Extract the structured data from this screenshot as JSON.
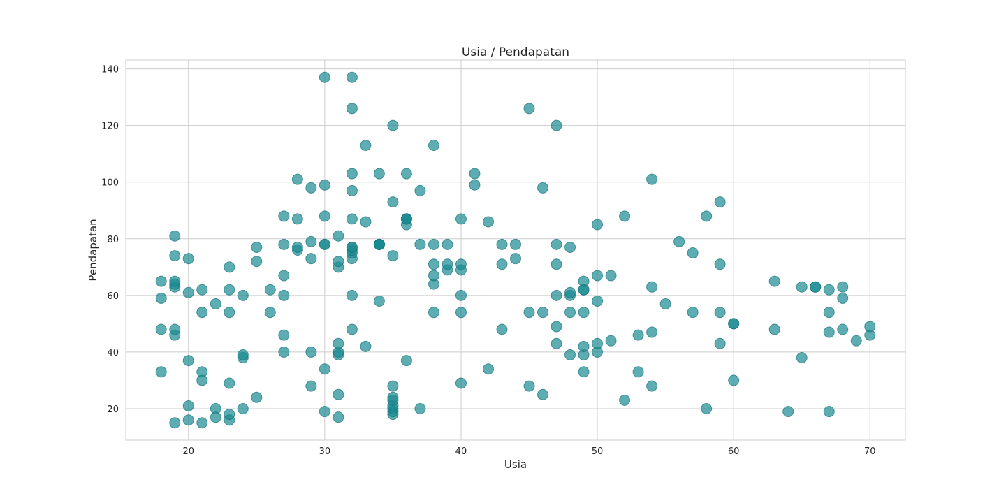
{
  "chart_data": {
    "type": "scatter",
    "title": "Usia / Pendapatan",
    "xlabel": "Usia",
    "ylabel": "Pendapatan",
    "xlim": [
      15.4,
      72.6
    ],
    "ylim": [
      8.9,
      143.1
    ],
    "xticks": [
      20,
      30,
      40,
      50,
      60,
      70
    ],
    "yticks": [
      20,
      40,
      60,
      80,
      100,
      120,
      140
    ],
    "grid": true,
    "marker_color": "#1a8a92",
    "marker_edge": "#16737a",
    "marker_alpha": 0.7,
    "points": [
      [
        19,
        15
      ],
      [
        21,
        15
      ],
      [
        20,
        16
      ],
      [
        23,
        16
      ],
      [
        31,
        17
      ],
      [
        22,
        17
      ],
      [
        35,
        18
      ],
      [
        23,
        18
      ],
      [
        64,
        19
      ],
      [
        67,
        19
      ],
      [
        30,
        19
      ],
      [
        35,
        19
      ],
      [
        58,
        20
      ],
      [
        35,
        20
      ],
      [
        37,
        20
      ],
      [
        22,
        20
      ],
      [
        24,
        20
      ],
      [
        20,
        21
      ],
      [
        35,
        21
      ],
      [
        52,
        23
      ],
      [
        35,
        23
      ],
      [
        25,
        24
      ],
      [
        35,
        24
      ],
      [
        46,
        25
      ],
      [
        31,
        25
      ],
      [
        54,
        28
      ],
      [
        45,
        28
      ],
      [
        29,
        28
      ],
      [
        35,
        28
      ],
      [
        40,
        29
      ],
      [
        23,
        29
      ],
      [
        60,
        30
      ],
      [
        21,
        30
      ],
      [
        53,
        33
      ],
      [
        18,
        33
      ],
      [
        49,
        33
      ],
      [
        21,
        33
      ],
      [
        30,
        34
      ],
      [
        42,
        34
      ],
      [
        20,
        37
      ],
      [
        36,
        37
      ],
      [
        65,
        38
      ],
      [
        24,
        38
      ],
      [
        49,
        39
      ],
      [
        48,
        39
      ],
      [
        31,
        39
      ],
      [
        24,
        39
      ],
      [
        50,
        40
      ],
      [
        27,
        40
      ],
      [
        29,
        40
      ],
      [
        31,
        40
      ],
      [
        33,
        42
      ],
      [
        49,
        42
      ],
      [
        59,
        43
      ],
      [
        31,
        43
      ],
      [
        50,
        43
      ],
      [
        47,
        43
      ],
      [
        69,
        44
      ],
      [
        51,
        44
      ],
      [
        70,
        46
      ],
      [
        19,
        46
      ],
      [
        27,
        46
      ],
      [
        53,
        46
      ],
      [
        67,
        47
      ],
      [
        54,
        47
      ],
      [
        43,
        48
      ],
      [
        68,
        48
      ],
      [
        32,
        48
      ],
      [
        19,
        48
      ],
      [
        63,
        48
      ],
      [
        18,
        48
      ],
      [
        70,
        49
      ],
      [
        47,
        49
      ],
      [
        60,
        50
      ],
      [
        60,
        50
      ],
      [
        59,
        54
      ],
      [
        26,
        54
      ],
      [
        45,
        54
      ],
      [
        40,
        54
      ],
      [
        23,
        54
      ],
      [
        49,
        54
      ],
      [
        57,
        54
      ],
      [
        38,
        54
      ],
      [
        67,
        54
      ],
      [
        46,
        54
      ],
      [
        21,
        54
      ],
      [
        48,
        54
      ],
      [
        55,
        57
      ],
      [
        22,
        57
      ],
      [
        34,
        58
      ],
      [
        50,
        58
      ],
      [
        68,
        59
      ],
      [
        18,
        59
      ],
      [
        48,
        60
      ],
      [
        40,
        60
      ],
      [
        32,
        60
      ],
      [
        24,
        60
      ],
      [
        47,
        60
      ],
      [
        27,
        60
      ],
      [
        48,
        61
      ],
      [
        20,
        61
      ],
      [
        23,
        62
      ],
      [
        49,
        62
      ],
      [
        67,
        62
      ],
      [
        26,
        62
      ],
      [
        49,
        62
      ],
      [
        21,
        62
      ],
      [
        66,
        63
      ],
      [
        54,
        63
      ],
      [
        68,
        63
      ],
      [
        66,
        63
      ],
      [
        65,
        63
      ],
      [
        19,
        63
      ],
      [
        38,
        64
      ],
      [
        19,
        64
      ],
      [
        18,
        65
      ],
      [
        19,
        65
      ],
      [
        63,
        65
      ],
      [
        49,
        65
      ],
      [
        51,
        67
      ],
      [
        50,
        67
      ],
      [
        27,
        67
      ],
      [
        38,
        67
      ],
      [
        40,
        69
      ],
      [
        39,
        69
      ],
      [
        23,
        70
      ],
      [
        31,
        70
      ],
      [
        43,
        71
      ],
      [
        40,
        71
      ],
      [
        59,
        71
      ],
      [
        38,
        71
      ],
      [
        47,
        71
      ],
      [
        39,
        71
      ],
      [
        25,
        72
      ],
      [
        31,
        72
      ],
      [
        20,
        73
      ],
      [
        29,
        73
      ],
      [
        44,
        73
      ],
      [
        32,
        73
      ],
      [
        19,
        74
      ],
      [
        35,
        74
      ],
      [
        57,
        75
      ],
      [
        32,
        75
      ],
      [
        28,
        76
      ],
      [
        32,
        76
      ],
      [
        25,
        77
      ],
      [
        32,
        77
      ],
      [
        28,
        77
      ],
      [
        48,
        77
      ],
      [
        32,
        77
      ],
      [
        34,
        78
      ],
      [
        30,
        78
      ],
      [
        34,
        78
      ],
      [
        34,
        78
      ],
      [
        43,
        78
      ],
      [
        39,
        78
      ],
      [
        38,
        78
      ],
      [
        47,
        78
      ],
      [
        27,
        78
      ],
      [
        30,
        78
      ],
      [
        44,
        78
      ],
      [
        37,
        78
      ],
      [
        34,
        78
      ],
      [
        56,
        79
      ],
      [
        29,
        79
      ],
      [
        19,
        81
      ],
      [
        31,
        81
      ],
      [
        50,
        85
      ],
      [
        36,
        85
      ],
      [
        42,
        86
      ],
      [
        33,
        86
      ],
      [
        36,
        87
      ],
      [
        40,
        87
      ],
      [
        36,
        87
      ],
      [
        28,
        87
      ],
      [
        36,
        87
      ],
      [
        32,
        87
      ],
      [
        58,
        88
      ],
      [
        27,
        88
      ],
      [
        30,
        88
      ],
      [
        52,
        88
      ],
      [
        59,
        93
      ],
      [
        35,
        93
      ],
      [
        37,
        97
      ],
      [
        32,
        97
      ],
      [
        46,
        98
      ],
      [
        29,
        98
      ],
      [
        41,
        99
      ],
      [
        30,
        99
      ],
      [
        54,
        101
      ],
      [
        28,
        101
      ],
      [
        41,
        103
      ],
      [
        36,
        103
      ],
      [
        34,
        103
      ],
      [
        32,
        103
      ],
      [
        33,
        113
      ],
      [
        38,
        113
      ],
      [
        35,
        120
      ],
      [
        47,
        120
      ],
      [
        45,
        126
      ],
      [
        32,
        126
      ],
      [
        32,
        137
      ],
      [
        30,
        137
      ]
    ]
  }
}
